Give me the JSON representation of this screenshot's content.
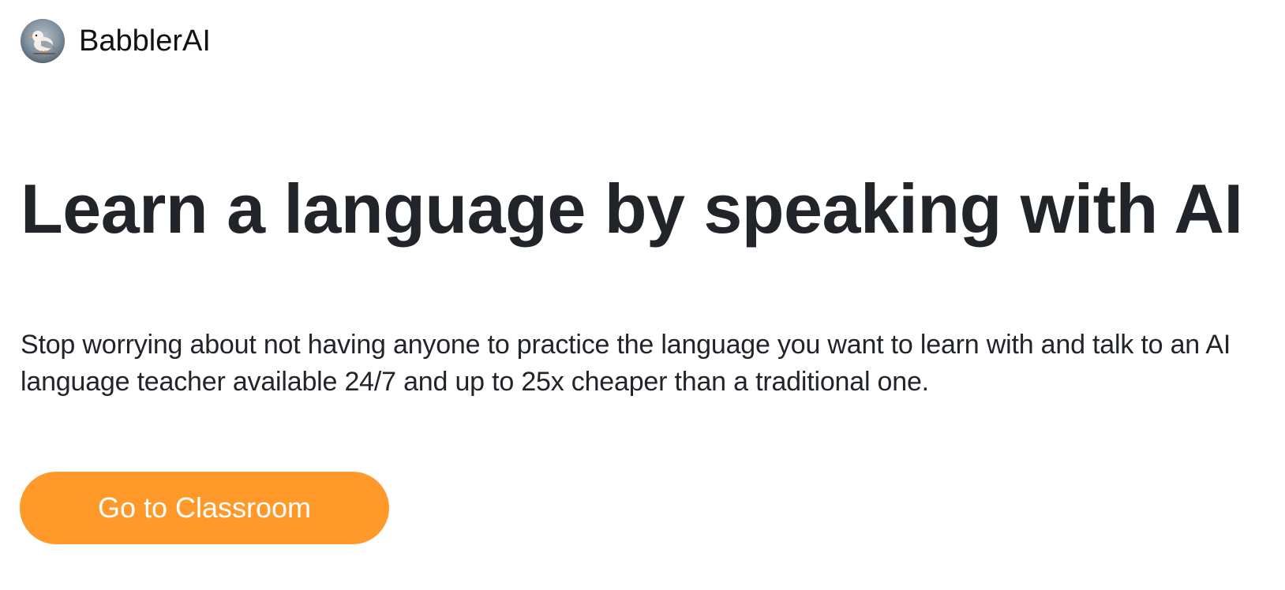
{
  "header": {
    "logo_icon": "bird-logo-icon",
    "brand_name": "BabblerAI"
  },
  "hero": {
    "headline": "Learn a language by speaking with AI",
    "subtitle": "Stop worrying about not having anyone to practice the language you want to learn with and talk to an AI language teacher available 24/7 and up to 25x cheaper than a traditional one.",
    "cta_label": "Go to Classroom"
  },
  "colors": {
    "accent": "#ff9a2a",
    "text": "#212529",
    "background": "#ffffff"
  }
}
